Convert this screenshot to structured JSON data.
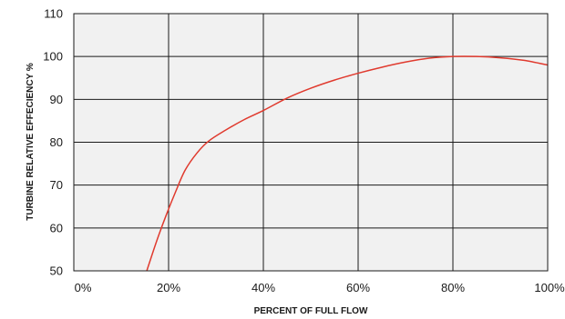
{
  "chart_data": {
    "type": "line",
    "title": "",
    "xlabel": "PERCENT OF FULL FLOW",
    "ylabel": "TURBINE RELATIVE EFFECIENCY %",
    "xlim": [
      0,
      100
    ],
    "ylim": [
      50,
      110
    ],
    "x_ticks": [
      {
        "value": 0,
        "label": "0%"
      },
      {
        "value": 20,
        "label": "20%"
      },
      {
        "value": 40,
        "label": "40%"
      },
      {
        "value": 60,
        "label": "60%"
      },
      {
        "value": 80,
        "label": "80%"
      },
      {
        "value": 100,
        "label": "100%"
      }
    ],
    "y_ticks": [
      {
        "value": 50,
        "label": "50"
      },
      {
        "value": 60,
        "label": "60"
      },
      {
        "value": 70,
        "label": "70"
      },
      {
        "value": 80,
        "label": "80"
      },
      {
        "value": 90,
        "label": "90"
      },
      {
        "value": 100,
        "label": "100"
      },
      {
        "value": 110,
        "label": "110"
      }
    ],
    "grid": true,
    "background": "#f1f1f1",
    "series": [
      {
        "color": "#e03a2e",
        "x": [
          15.4,
          17.5,
          19.5,
          21.5,
          23.5,
          26,
          28.5,
          32,
          36,
          40,
          45,
          50,
          55,
          60,
          65,
          70,
          75,
          80,
          85,
          90,
          95,
          100
        ],
        "y": [
          50,
          57,
          63,
          68.5,
          73.5,
          77.5,
          80.3,
          82.8,
          85.3,
          87.4,
          90.3,
          92.6,
          94.5,
          96.1,
          97.5,
          98.7,
          99.6,
          100,
          100,
          99.7,
          99.1,
          98.0
        ]
      }
    ]
  }
}
